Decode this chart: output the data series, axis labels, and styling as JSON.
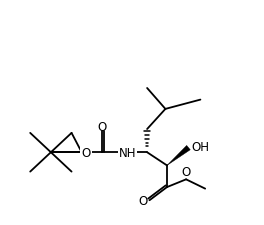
{
  "background_color": "#ffffff",
  "line_color": "#000000",
  "line_width": 1.3,
  "font_size": 8.5,
  "figsize": [
    2.64,
    2.26
  ],
  "dpi": 100,
  "xlim": [
    0.0,
    7.0
  ],
  "ylim": [
    0.5,
    6.8
  ]
}
